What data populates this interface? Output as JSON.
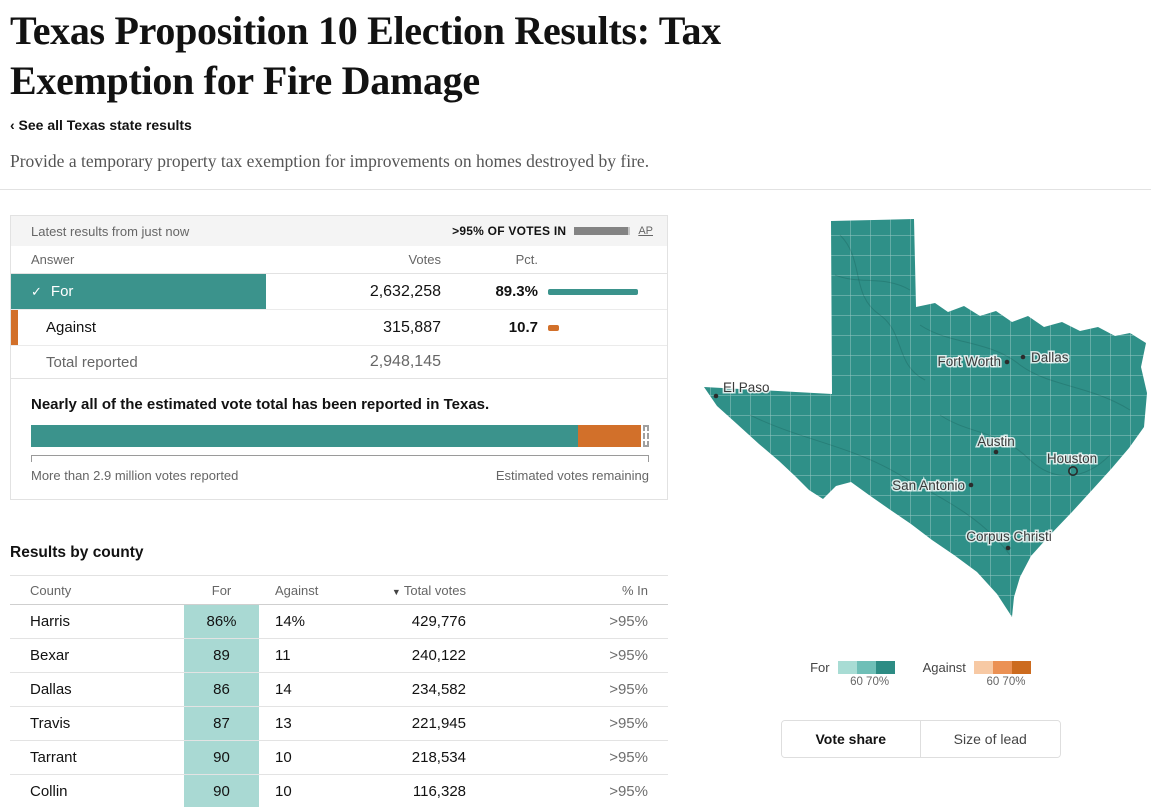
{
  "page": {
    "title_line1": "Texas Proposition 10 Election Results: Tax",
    "title_line2": "Exemption for Fire Damage",
    "back_link": "‹ See all Texas state results",
    "description": "Provide a temporary property tax exemption for improvements on homes destroyed by fire."
  },
  "results_panel": {
    "updated_text": "Latest results from just now",
    "votes_in_label": ">95% OF VOTES IN",
    "votes_in_fill_pct": 95,
    "source_label": "AP",
    "header": {
      "answer": "Answer",
      "votes": "Votes",
      "pct": "Pct."
    },
    "rows": [
      {
        "check": "✓",
        "answer": "For",
        "votes": "2,632,258",
        "pct": "89.3%",
        "bar_pct": 89.3
      },
      {
        "answer": "Against",
        "votes": "315,887",
        "pct": "10.7",
        "bar_pct": 10.7
      }
    ],
    "total_label": "Total reported",
    "total_value": "2,948,145",
    "estimate": {
      "headline": "Nearly all of the estimated vote total has been reported in Texas.",
      "reported_teal_pct": 88.8,
      "reported_orange_pct": 10.2,
      "remaining_pct": 1.0,
      "left_label": "More than 2.9 million votes reported",
      "right_label": "Estimated votes remaining"
    }
  },
  "county_table": {
    "heading": "Results by county",
    "columns": {
      "county": "County",
      "for": "For",
      "against": "Against",
      "sort_icon": "▼",
      "total": "Total votes",
      "in": "% In"
    },
    "rows": [
      {
        "county": "Harris",
        "for": "86%",
        "against": "14%",
        "total": "429,776",
        "in": ">95%"
      },
      {
        "county": "Bexar",
        "for": "89",
        "against": "11",
        "total": "240,122",
        "in": ">95%"
      },
      {
        "county": "Dallas",
        "for": "86",
        "against": "14",
        "total": "234,582",
        "in": ">95%"
      },
      {
        "county": "Travis",
        "for": "87",
        "against": "13",
        "total": "221,945",
        "in": ">95%"
      },
      {
        "county": "Tarrant",
        "for": "90",
        "against": "10",
        "total": "218,534",
        "in": ">95%"
      },
      {
        "county": "Collin",
        "for": "90",
        "against": "10",
        "total": "116,328",
        "in": ">95%"
      }
    ]
  },
  "map": {
    "cities": [
      {
        "name": "El Paso"
      },
      {
        "name": "Fort Worth"
      },
      {
        "name": "Dallas"
      },
      {
        "name": "Austin"
      },
      {
        "name": "Houston"
      },
      {
        "name": "San Antonio"
      },
      {
        "name": "Corpus Christi"
      }
    ],
    "legend": {
      "for_label": "For",
      "against_label": "Against",
      "tick_60": "60",
      "tick_70": "70%"
    },
    "toggle": [
      {
        "label": "Vote share"
      },
      {
        "label": "Size of lead"
      }
    ]
  },
  "colors": {
    "teal": "#3b938c",
    "teal_map": "#2f9088",
    "teal_cell": "#a9d9d3",
    "orange": "#d2702a",
    "legend_for": [
      "#a8dcd4",
      "#6fbfb7",
      "#2d8c84"
    ],
    "legend_against": [
      "#f7c9a4",
      "#eb9154",
      "#cc6b1f"
    ]
  }
}
